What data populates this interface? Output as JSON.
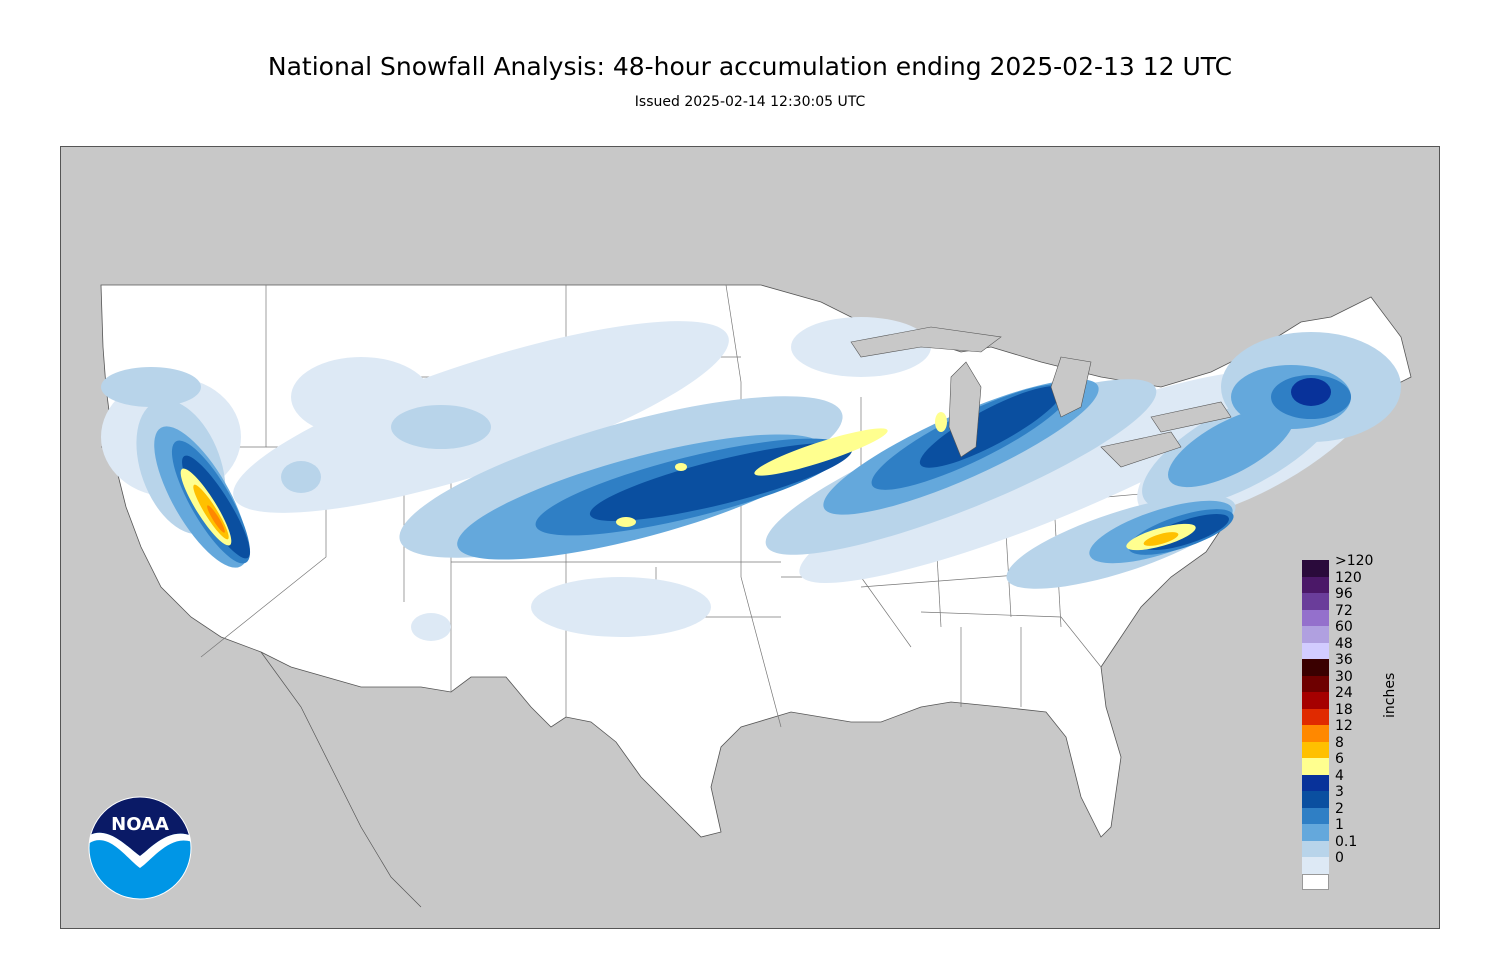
{
  "header": {
    "title": "National Snowfall Analysis: 48-hour accumulation ending 2025-02-13 12 UTC",
    "issued": "Issued 2025-02-14 12:30:05 UTC"
  },
  "colors": {
    "background": "#ffffff",
    "ocean_land_outside": "#c8c8c8",
    "conus_land": "#ffffff",
    "border_lines": "#555555"
  },
  "legend": {
    "units": "inches",
    "bins": [
      {
        "label": ">120",
        "color": "#2a0a3b"
      },
      {
        "label": "120",
        "color": "#4b1868"
      },
      {
        "label": "96",
        "color": "#6a3d9a"
      },
      {
        "label": "72",
        "color": "#9470cc"
      },
      {
        "label": "60",
        "color": "#b0a0e0"
      },
      {
        "label": "48",
        "color": "#d2ccff"
      },
      {
        "label": "36",
        "color": "#3a0000"
      },
      {
        "label": "30",
        "color": "#6e0000"
      },
      {
        "label": "24",
        "color": "#a50000"
      },
      {
        "label": "18",
        "color": "#e02a00"
      },
      {
        "label": "12",
        "color": "#ff8800"
      },
      {
        "label": "8",
        "color": "#ffc000"
      },
      {
        "label": "6",
        "color": "#ffff8f"
      },
      {
        "label": "4",
        "color": "#08329a"
      },
      {
        "label": "3",
        "color": "#0a4fa0"
      },
      {
        "label": "2",
        "color": "#2f7fc5"
      },
      {
        "label": "1",
        "color": "#64a8dc"
      },
      {
        "label": "0.1",
        "color": "#b8d4ea"
      },
      {
        "label": "0",
        "color": "#dde9f5"
      }
    ],
    "zero_color": "#ffffff"
  },
  "logo": {
    "text": "NOAA",
    "colors": {
      "top": "#0a1a66",
      "bottom": "#0096e6",
      "gull": "#ffffff"
    }
  }
}
